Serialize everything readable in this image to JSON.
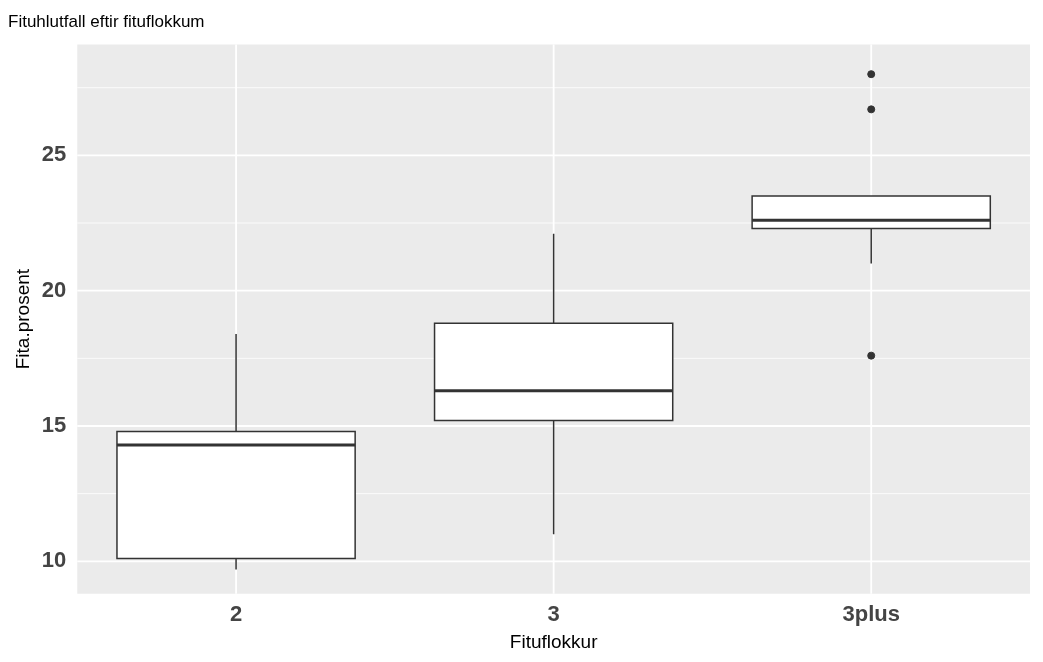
{
  "chart_data": {
    "type": "box",
    "title": "Fituhlutfall eftir fituflokkum",
    "xlabel": "Fituflokkur",
    "ylabel": "Fita.prosent",
    "categories": [
      "2",
      "3",
      "3plus"
    ],
    "color": "#ffffff",
    "boxes": [
      {
        "low": 9.7,
        "q1": 10.1,
        "median": 14.3,
        "q3": 14.8,
        "high": 18.4
      },
      {
        "low": 11.0,
        "q1": 15.2,
        "median": 16.3,
        "q3": 18.8,
        "high": 22.1
      },
      {
        "low": 21.0,
        "q1": 22.3,
        "median": 22.6,
        "q3": 23.5,
        "high": 23.5,
        "outliers": [
          28.0,
          26.7,
          17.6
        ]
      }
    ],
    "ylim": [
      8.8,
      29.1
    ],
    "yticks": [
      {
        "value": 12.5,
        "label": null
      },
      {
        "value": 17.5,
        "label": null
      },
      {
        "value": 22.5,
        "label": null
      },
      {
        "value": 27.5,
        "label": null
      },
      10,
      15,
      20,
      25
    ],
    "grid": true
  }
}
